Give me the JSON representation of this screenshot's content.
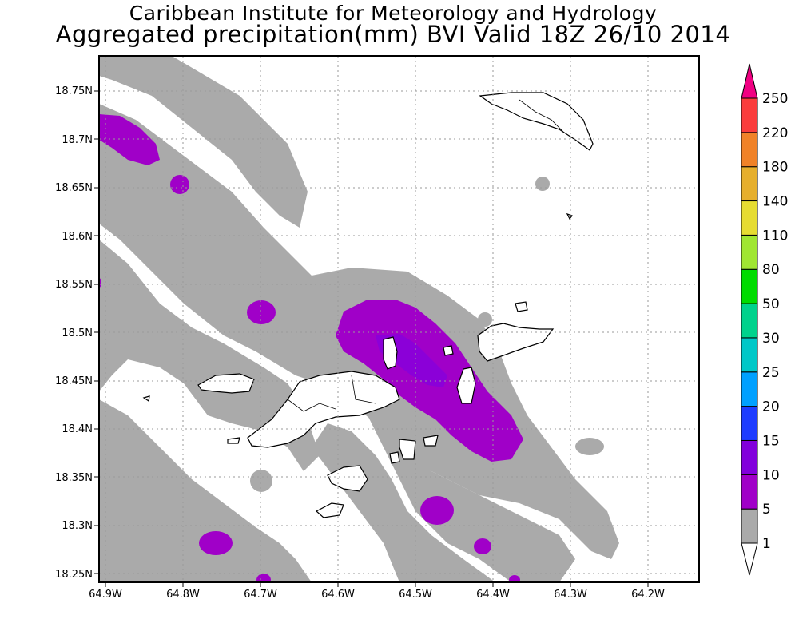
{
  "title": {
    "line1": "Caribbean Institute for Meteorology and Hydrology",
    "line2": "Aggregated precipitation(mm) BVI Valid 18Z 26/10 2014"
  },
  "map": {
    "lon_ticks": [
      "64.9W",
      "64.8W",
      "64.7W",
      "64.6W",
      "64.5W",
      "64.4W",
      "64.3W",
      "64.2W"
    ],
    "lat_ticks": [
      "18.75N",
      "18.7N",
      "18.65N",
      "18.6N",
      "18.55N",
      "18.5N",
      "18.45N",
      "18.4N",
      "18.35N",
      "18.3N",
      "18.25N"
    ],
    "grid": "dotted",
    "shade_colors": {
      "1-5": "#aaaaaa",
      "5-10": "#a000c8",
      "10-15": "#8200dc"
    }
  },
  "colorbar": {
    "levels": [
      "1",
      "5",
      "10",
      "15",
      "20",
      "25",
      "30",
      "50",
      "80",
      "110",
      "140",
      "180",
      "220",
      "250"
    ],
    "colors": [
      "#aaaaaa",
      "#a000c8",
      "#8200dc",
      "#1e3cff",
      "#00a0ff",
      "#00c8c8",
      "#00d28c",
      "#00dc00",
      "#a0e632",
      "#e6dc32",
      "#e6af2d",
      "#f08228",
      "#fa3c3c",
      "#f00082"
    ],
    "bottom_color": "#ffffff"
  }
}
